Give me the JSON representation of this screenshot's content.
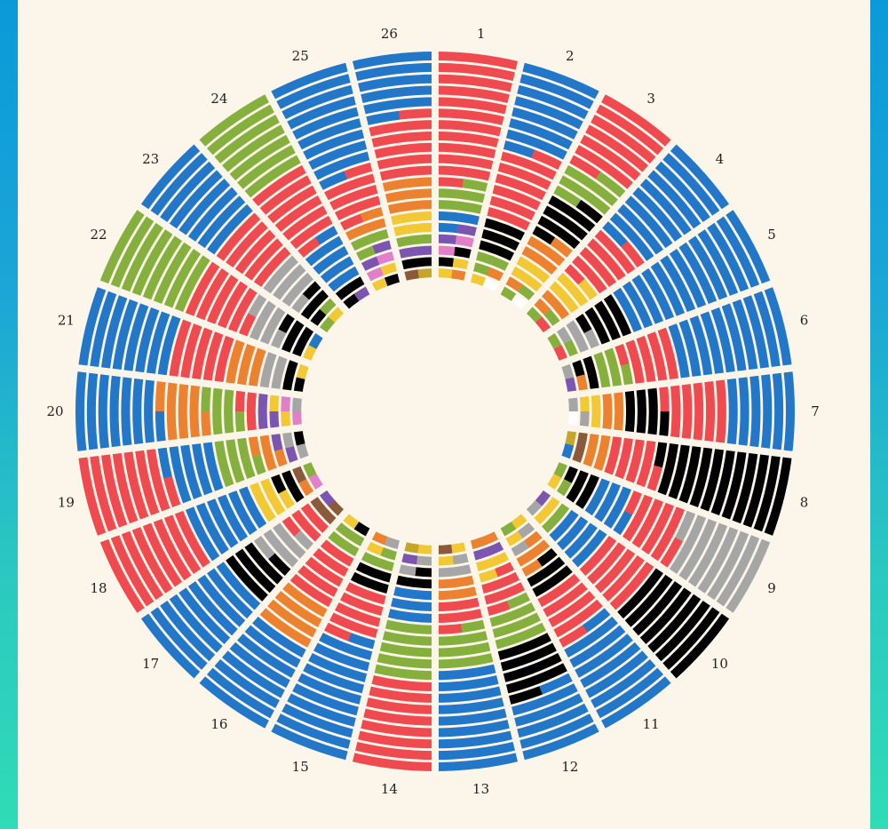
{
  "colors": {
    "red": "#ef4a50",
    "blue": "#2277c8",
    "green": "#86b03e",
    "black": "#000000",
    "gray": "#a6a6a6",
    "orange": "#ec8230",
    "yellow": "#f2c935",
    "purple": "#7b55b0",
    "pink": "#e37fc8",
    "brown": "#8a5a3a",
    "olive": "#c5a52a",
    "white": "#ffffff",
    "background": "#fcf6ea"
  },
  "chart_data": {
    "type": "radial-stacked-cells",
    "categories": [
      "1",
      "2",
      "3",
      "4",
      "5",
      "6",
      "7",
      "8",
      "9",
      "10",
      "11",
      "12",
      "13",
      "14",
      "15",
      "16",
      "17",
      "18",
      "19",
      "20",
      "21",
      "22",
      "23",
      "24",
      "25",
      "26"
    ],
    "cells_per_category": 40,
    "series": [
      {
        "label": "1",
        "counts": [
          [
            "red",
            23
          ],
          [
            "green",
            5
          ],
          [
            "blue",
            3
          ],
          [
            "purple",
            2
          ],
          [
            "pink",
            2
          ],
          [
            "black",
            2
          ],
          [
            "yellow",
            2
          ],
          [
            "orange",
            1
          ]
        ]
      },
      {
        "label": "2",
        "counts": [
          [
            "blue",
            15
          ],
          [
            "red",
            13
          ],
          [
            "black",
            6
          ],
          [
            "green",
            3
          ],
          [
            "orange",
            1
          ],
          [
            "yellow",
            1
          ],
          [
            "white",
            1
          ]
        ]
      },
      {
        "label": "3",
        "counts": [
          [
            "red",
            13
          ],
          [
            "green",
            6
          ],
          [
            "black",
            8
          ],
          [
            "orange",
            5
          ],
          [
            "yellow",
            4
          ],
          [
            "orange",
            1
          ],
          [
            "green",
            2
          ],
          [
            "white",
            1
          ]
        ]
      },
      {
        "label": "4",
        "counts": [
          [
            "blue",
            19
          ],
          [
            "red",
            10
          ],
          [
            "yellow",
            5
          ],
          [
            "orange",
            3
          ],
          [
            "green",
            2
          ],
          [
            "red",
            1
          ]
        ]
      },
      {
        "label": "5",
        "counts": [
          [
            "blue",
            26
          ],
          [
            "black",
            7
          ],
          [
            "gray",
            4
          ],
          [
            "green",
            2
          ],
          [
            "red",
            1
          ]
        ]
      },
      {
        "label": "6",
        "counts": [
          [
            "blue",
            20
          ],
          [
            "red",
            9
          ],
          [
            "green",
            5
          ],
          [
            "black",
            3
          ],
          [
            "orange",
            1
          ],
          [
            "gray",
            1
          ],
          [
            "purple",
            1
          ]
        ]
      },
      {
        "label": "7",
        "counts": [
          [
            "blue",
            12
          ],
          [
            "red",
            11
          ],
          [
            "black",
            7
          ],
          [
            "orange",
            4
          ],
          [
            "yellow",
            3
          ],
          [
            "gray",
            2
          ],
          [
            "white",
            1
          ]
        ]
      },
      {
        "label": "8",
        "counts": [
          [
            "black",
            23
          ],
          [
            "red",
            9
          ],
          [
            "orange",
            4
          ],
          [
            "brown",
            2
          ],
          [
            "olive",
            1
          ],
          [
            "blue",
            1
          ]
        ]
      },
      {
        "label": "9",
        "counts": [
          [
            "gray",
            15
          ],
          [
            "red",
            10
          ],
          [
            "blue",
            7
          ],
          [
            "black",
            5
          ],
          [
            "green",
            2
          ],
          [
            "yellow",
            1
          ]
        ]
      },
      {
        "label": "10",
        "counts": [
          [
            "black",
            16
          ],
          [
            "red",
            10
          ],
          [
            "blue",
            8
          ],
          [
            "green",
            2
          ],
          [
            "yellow",
            2
          ],
          [
            "purple",
            1
          ],
          [
            "gray",
            1
          ]
        ]
      },
      {
        "label": "11",
        "counts": [
          [
            "blue",
            17
          ],
          [
            "red",
            9
          ],
          [
            "black",
            5
          ],
          [
            "orange",
            4
          ],
          [
            "gray",
            2
          ],
          [
            "yellow",
            2
          ],
          [
            "green",
            1
          ]
        ]
      },
      {
        "label": "12",
        "counts": [
          [
            "blue",
            11
          ],
          [
            "black",
            9
          ],
          [
            "green",
            7
          ],
          [
            "red",
            6
          ],
          [
            "yellow",
            3
          ],
          [
            "purple",
            2
          ],
          [
            "orange",
            2
          ]
        ]
      },
      {
        "label": "13",
        "counts": [
          [
            "blue",
            18
          ],
          [
            "green",
            7
          ],
          [
            "red",
            5
          ],
          [
            "orange",
            4
          ],
          [
            "gray",
            3
          ],
          [
            "yellow",
            2
          ],
          [
            "brown",
            1
          ]
        ]
      },
      {
        "label": "14",
        "counts": [
          [
            "red",
            16
          ],
          [
            "green",
            10
          ],
          [
            "blue",
            6
          ],
          [
            "black",
            3
          ],
          [
            "gray",
            2
          ],
          [
            "purple",
            1
          ],
          [
            "yellow",
            1
          ],
          [
            "olive",
            1
          ]
        ]
      },
      {
        "label": "15",
        "counts": [
          [
            "blue",
            21
          ],
          [
            "red",
            9
          ],
          [
            "black",
            4
          ],
          [
            "green",
            3
          ],
          [
            "yellow",
            1
          ],
          [
            "gray",
            1
          ],
          [
            "orange",
            1
          ]
        ]
      },
      {
        "label": "16",
        "counts": [
          [
            "blue",
            16
          ],
          [
            "orange",
            8
          ],
          [
            "red",
            10
          ],
          [
            "green",
            4
          ],
          [
            "black",
            1
          ],
          [
            "yellow",
            1
          ]
        ]
      },
      {
        "label": "17",
        "counts": [
          [
            "blue",
            18
          ],
          [
            "black",
            7
          ],
          [
            "gray",
            6
          ],
          [
            "red",
            5
          ],
          [
            "brown",
            3
          ],
          [
            "purple",
            1
          ]
        ]
      },
      {
        "label": "18",
        "counts": [
          [
            "red",
            16
          ],
          [
            "blue",
            12
          ],
          [
            "yellow",
            5
          ],
          [
            "black",
            3
          ],
          [
            "orange",
            1
          ],
          [
            "brown",
            1
          ],
          [
            "pink",
            1
          ],
          [
            "green",
            1
          ]
        ]
      },
      {
        "label": "19",
        "counts": [
          [
            "red",
            15
          ],
          [
            "blue",
            9
          ],
          [
            "green",
            7
          ],
          [
            "orange",
            4
          ],
          [
            "purple",
            2
          ],
          [
            "gray",
            2
          ],
          [
            "black",
            1
          ]
        ]
      },
      {
        "label": "20",
        "counts": [
          [
            "blue",
            15
          ],
          [
            "orange",
            8
          ],
          [
            "green",
            6
          ],
          [
            "red",
            3
          ],
          [
            "purple",
            3
          ],
          [
            "yellow",
            2
          ],
          [
            "pink",
            2
          ],
          [
            "gray",
            1
          ]
        ]
      },
      {
        "label": "21",
        "counts": [
          [
            "blue",
            16
          ],
          [
            "red",
            10
          ],
          [
            "orange",
            6
          ],
          [
            "gray",
            4
          ],
          [
            "black",
            3
          ],
          [
            "yellow",
            1
          ]
        ]
      },
      {
        "label": "22",
        "counts": [
          [
            "green",
            16
          ],
          [
            "red",
            11
          ],
          [
            "gray",
            6
          ],
          [
            "black",
            5
          ],
          [
            "yellow",
            1
          ],
          [
            "blue",
            1
          ]
        ]
      },
      {
        "label": "23",
        "counts": [
          [
            "blue",
            16
          ],
          [
            "red",
            10
          ],
          [
            "gray",
            7
          ],
          [
            "black",
            4
          ],
          [
            "green",
            2
          ],
          [
            "yellow",
            1
          ]
        ]
      },
      {
        "label": "24",
        "counts": [
          [
            "green",
            14
          ],
          [
            "red",
            13
          ],
          [
            "blue",
            9
          ],
          [
            "black",
            3
          ],
          [
            "purple",
            1
          ]
        ]
      },
      {
        "label": "25",
        "counts": [
          [
            "blue",
            19
          ],
          [
            "red",
            8
          ],
          [
            "orange",
            3
          ],
          [
            "green",
            3
          ],
          [
            "purple",
            2
          ],
          [
            "pink",
            2
          ],
          [
            "yellow",
            2
          ],
          [
            "black",
            1
          ]
        ]
      },
      {
        "label": "26",
        "counts": [
          [
            "blue",
            11
          ],
          [
            "red",
            11
          ],
          [
            "orange",
            6
          ],
          [
            "yellow",
            4
          ],
          [
            "green",
            2
          ],
          [
            "purple",
            2
          ],
          [
            "black",
            2
          ],
          [
            "brown",
            1
          ],
          [
            "olive",
            1
          ]
        ]
      }
    ],
    "title": "",
    "legend": "none"
  }
}
